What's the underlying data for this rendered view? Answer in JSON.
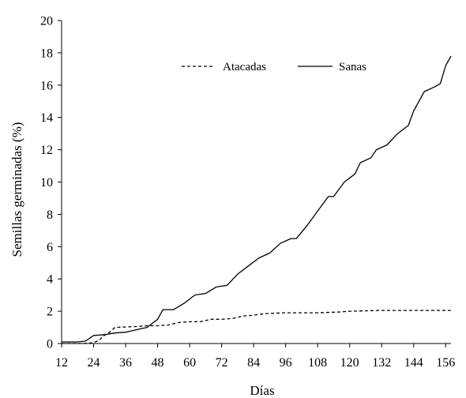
{
  "chart_data": {
    "type": "line",
    "title": "",
    "xlabel": "Días",
    "ylabel": "Semillas  germinadas  (%)",
    "xlim": [
      12,
      158
    ],
    "ylim": [
      0,
      20
    ],
    "x_ticks": [
      12,
      24,
      36,
      48,
      60,
      72,
      84,
      96,
      108,
      120,
      132,
      144,
      156
    ],
    "y_ticks": [
      0,
      2,
      4,
      6,
      8,
      10,
      12,
      14,
      16,
      18,
      20
    ],
    "grid": false,
    "legend_position": "top-center",
    "series": [
      {
        "name": "Atacadas",
        "line_style": "dashed",
        "color": "#000000",
        "points": [
          [
            12,
            0
          ],
          [
            20,
            0
          ],
          [
            24,
            0.05
          ],
          [
            26,
            0.2
          ],
          [
            28,
            0.5
          ],
          [
            30,
            0.7
          ],
          [
            32,
            1.0
          ],
          [
            40,
            1.05
          ],
          [
            44,
            1.1
          ],
          [
            48,
            1.1
          ],
          [
            52,
            1.15
          ],
          [
            56,
            1.3
          ],
          [
            60,
            1.35
          ],
          [
            64,
            1.35
          ],
          [
            68,
            1.5
          ],
          [
            72,
            1.5
          ],
          [
            76,
            1.55
          ],
          [
            80,
            1.7
          ],
          [
            84,
            1.75
          ],
          [
            88,
            1.85
          ],
          [
            96,
            1.9
          ],
          [
            108,
            1.9
          ],
          [
            116,
            1.95
          ],
          [
            120,
            2.0
          ],
          [
            132,
            2.05
          ],
          [
            144,
            2.05
          ],
          [
            158,
            2.05
          ]
        ]
      },
      {
        "name": "Sanas",
        "line_style": "solid",
        "color": "#000000",
        "points": [
          [
            12,
            0.1
          ],
          [
            18,
            0.1
          ],
          [
            21,
            0.15
          ],
          [
            24,
            0.5
          ],
          [
            28,
            0.55
          ],
          [
            32,
            0.65
          ],
          [
            36,
            0.7
          ],
          [
            40,
            0.85
          ],
          [
            44,
            1.0
          ],
          [
            48,
            1.5
          ],
          [
            50,
            2.1
          ],
          [
            54,
            2.1
          ],
          [
            58,
            2.5
          ],
          [
            62,
            3.0
          ],
          [
            66,
            3.1
          ],
          [
            70,
            3.5
          ],
          [
            74,
            3.6
          ],
          [
            78,
            4.3
          ],
          [
            82,
            4.8
          ],
          [
            86,
            5.3
          ],
          [
            90,
            5.6
          ],
          [
            94,
            6.2
          ],
          [
            98,
            6.5
          ],
          [
            100,
            6.5
          ],
          [
            104,
            7.3
          ],
          [
            108,
            8.2
          ],
          [
            112,
            9.1
          ],
          [
            114,
            9.1
          ],
          [
            118,
            10.0
          ],
          [
            122,
            10.5
          ],
          [
            124,
            11.2
          ],
          [
            128,
            11.5
          ],
          [
            130,
            12.0
          ],
          [
            134,
            12.3
          ],
          [
            138,
            13.0
          ],
          [
            142,
            13.5
          ],
          [
            144,
            14.4
          ],
          [
            148,
            15.6
          ],
          [
            152,
            15.9
          ],
          [
            154,
            16.1
          ],
          [
            156,
            17.2
          ],
          [
            158,
            17.8
          ]
        ]
      }
    ]
  }
}
